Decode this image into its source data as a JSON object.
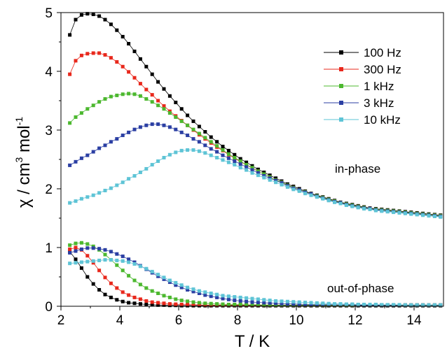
{
  "chart_data": {
    "type": "scatter",
    "xlabel": "T / K",
    "ylabel_parts": [
      "χ / cm",
      "3",
      " mol",
      "-1"
    ],
    "xlim": [
      2,
      15
    ],
    "ylim": [
      0,
      5
    ],
    "xticks": [
      "2",
      "4",
      "6",
      "8",
      "10",
      "12",
      "14"
    ],
    "yticks": [
      "0",
      "1",
      "2",
      "3",
      "4",
      "5"
    ],
    "x": [
      2.3,
      2.5,
      2.7,
      2.9,
      3.1,
      3.3,
      3.5,
      3.7,
      3.9,
      4.1,
      4.3,
      4.5,
      4.7,
      4.9,
      5.1,
      5.3,
      5.5,
      5.7,
      5.9,
      6.1,
      6.3,
      6.5,
      6.7,
      6.9,
      7.1,
      7.3,
      7.5,
      7.7,
      7.9,
      8.1,
      8.3,
      8.5,
      8.7,
      8.9,
      9.1,
      9.3,
      9.5,
      9.7,
      9.9,
      10.1,
      10.3,
      10.5,
      10.7,
      10.9,
      11.1,
      11.3,
      11.5,
      11.7,
      11.9,
      12.1,
      12.3,
      12.5,
      12.7,
      12.9,
      13.1,
      13.3,
      13.5,
      13.7,
      13.9,
      14.1,
      14.3,
      14.5,
      14.7,
      14.9
    ],
    "legend": {
      "position": "top-right",
      "entries": [
        "100 Hz",
        "300 Hz",
        "1 kHz",
        "3 kHz",
        "10 kHz"
      ]
    },
    "annotations": [
      "in-phase",
      "out-of-phase"
    ],
    "series": [
      {
        "name": "100 Hz",
        "color": "#000000",
        "in_phase": [
          4.62,
          4.88,
          4.96,
          4.98,
          4.97,
          4.94,
          4.88,
          4.8,
          4.7,
          4.59,
          4.47,
          4.34,
          4.21,
          4.08,
          3.95,
          3.82,
          3.7,
          3.58,
          3.47,
          3.36,
          3.25,
          3.15,
          3.06,
          2.97,
          2.88,
          2.8,
          2.72,
          2.65,
          2.58,
          2.51,
          2.45,
          2.39,
          2.33,
          2.28,
          2.23,
          2.18,
          2.13,
          2.08,
          2.04,
          2.0,
          1.96,
          1.92,
          1.89,
          1.86,
          1.83,
          1.8,
          1.77,
          1.75,
          1.73,
          1.71,
          1.69,
          1.67,
          1.66,
          1.65,
          1.64,
          1.63,
          1.62,
          1.61,
          1.6,
          1.59,
          1.58,
          1.57,
          1.56,
          1.55
        ],
        "out_of_phase": [
          0.93,
          0.8,
          0.65,
          0.5,
          0.38,
          0.28,
          0.2,
          0.15,
          0.11,
          0.08,
          0.06,
          0.05,
          0.04,
          0.03,
          0.025,
          0.02,
          0.02,
          0.015,
          0.015,
          0.01,
          0.01,
          0.01,
          0.01,
          0.01,
          0.01,
          0.01,
          0.01,
          0.01,
          0.01,
          0.01,
          0.01,
          0.01,
          0.01,
          0.01,
          0.01,
          0.01,
          0.01,
          0.01,
          0.01,
          0.01,
          0.01,
          0.01,
          0.01,
          0.01,
          0.01,
          0.01,
          0.01,
          0.01,
          0.01,
          0.01,
          0.01,
          0.01,
          0.01,
          0.01,
          0.01,
          0.01,
          0.01,
          0.01,
          0.01,
          0.01,
          0.01,
          0.01,
          0.01,
          0.01
        ]
      },
      {
        "name": "300 Hz",
        "color": "#e8281c",
        "in_phase": [
          3.95,
          4.18,
          4.27,
          4.3,
          4.31,
          4.31,
          4.28,
          4.23,
          4.16,
          4.08,
          3.99,
          3.89,
          3.79,
          3.69,
          3.6,
          3.5,
          3.41,
          3.32,
          3.24,
          3.16,
          3.08,
          3.0,
          2.92,
          2.85,
          2.78,
          2.71,
          2.65,
          2.58,
          2.52,
          2.46,
          2.41,
          2.35,
          2.3,
          2.25,
          2.2,
          2.15,
          2.11,
          2.06,
          2.02,
          1.98,
          1.95,
          1.91,
          1.88,
          1.85,
          1.82,
          1.79,
          1.76,
          1.74,
          1.72,
          1.7,
          1.68,
          1.66,
          1.65,
          1.64,
          1.63,
          1.62,
          1.61,
          1.6,
          1.59,
          1.58,
          1.57,
          1.56,
          1.55,
          1.54
        ],
        "out_of_phase": [
          0.97,
          1.0,
          0.96,
          0.86,
          0.74,
          0.61,
          0.49,
          0.39,
          0.31,
          0.24,
          0.19,
          0.15,
          0.12,
          0.09,
          0.07,
          0.06,
          0.05,
          0.04,
          0.035,
          0.03,
          0.03,
          0.025,
          0.025,
          0.02,
          0.02,
          0.02,
          0.02,
          0.02,
          0.02,
          0.02,
          0.02,
          0.02,
          0.02,
          0.02,
          0.02,
          0.02,
          0.02,
          0.02,
          0.02,
          0.02,
          0.02,
          0.02,
          0.02,
          0.02,
          0.02,
          0.02,
          0.02,
          0.02,
          0.02,
          0.02,
          0.02,
          0.02,
          0.02,
          0.02,
          0.02,
          0.02,
          0.02,
          0.02,
          0.02,
          0.02,
          0.02,
          0.02,
          0.02,
          0.02
        ]
      },
      {
        "name": "1 kHz",
        "color": "#4cb82f",
        "in_phase": [
          3.12,
          3.22,
          3.29,
          3.36,
          3.42,
          3.48,
          3.53,
          3.57,
          3.59,
          3.61,
          3.62,
          3.61,
          3.58,
          3.53,
          3.48,
          3.42,
          3.36,
          3.29,
          3.22,
          3.15,
          3.08,
          3.01,
          2.94,
          2.87,
          2.8,
          2.73,
          2.66,
          2.59,
          2.53,
          2.47,
          2.41,
          2.36,
          2.3,
          2.25,
          2.2,
          2.15,
          2.11,
          2.06,
          2.02,
          1.98,
          1.95,
          1.91,
          1.88,
          1.85,
          1.82,
          1.79,
          1.76,
          1.74,
          1.72,
          1.7,
          1.68,
          1.66,
          1.65,
          1.64,
          1.63,
          1.62,
          1.61,
          1.6,
          1.59,
          1.58,
          1.57,
          1.56,
          1.55,
          1.54
        ],
        "out_of_phase": [
          1.04,
          1.07,
          1.08,
          1.06,
          1.02,
          0.96,
          0.88,
          0.79,
          0.7,
          0.61,
          0.52,
          0.44,
          0.37,
          0.31,
          0.26,
          0.22,
          0.18,
          0.15,
          0.12,
          0.1,
          0.085,
          0.07,
          0.06,
          0.05,
          0.045,
          0.04,
          0.035,
          0.03,
          0.03,
          0.03,
          0.025,
          0.025,
          0.025,
          0.02,
          0.02,
          0.02,
          0.02,
          0.02,
          0.02,
          0.02,
          0.02,
          0.02,
          0.02,
          0.02,
          0.02,
          0.02,
          0.02,
          0.02,
          0.02,
          0.02,
          0.02,
          0.02,
          0.02,
          0.02,
          0.02,
          0.02,
          0.02,
          0.02,
          0.02,
          0.02,
          0.02,
          0.02,
          0.02,
          0.02
        ]
      },
      {
        "name": "3 kHz",
        "color": "#2b3fa3",
        "in_phase": [
          2.4,
          2.46,
          2.52,
          2.57,
          2.63,
          2.69,
          2.74,
          2.8,
          2.85,
          2.91,
          2.96,
          3.01,
          3.05,
          3.08,
          3.1,
          3.1,
          3.08,
          3.05,
          3.01,
          2.96,
          2.91,
          2.85,
          2.8,
          2.74,
          2.68,
          2.63,
          2.57,
          2.52,
          2.47,
          2.42,
          2.37,
          2.32,
          2.27,
          2.22,
          2.18,
          2.14,
          2.1,
          2.05,
          2.01,
          1.98,
          1.94,
          1.91,
          1.87,
          1.84,
          1.81,
          1.78,
          1.76,
          1.73,
          1.71,
          1.69,
          1.67,
          1.66,
          1.64,
          1.63,
          1.62,
          1.61,
          1.6,
          1.59,
          1.58,
          1.57,
          1.56,
          1.55,
          1.54,
          1.53
        ],
        "out_of_phase": [
          0.91,
          0.94,
          0.97,
          0.99,
          0.99,
          0.98,
          0.96,
          0.93,
          0.89,
          0.85,
          0.8,
          0.75,
          0.69,
          0.63,
          0.57,
          0.51,
          0.46,
          0.41,
          0.36,
          0.32,
          0.28,
          0.25,
          0.22,
          0.19,
          0.17,
          0.15,
          0.13,
          0.115,
          0.1,
          0.09,
          0.08,
          0.07,
          0.065,
          0.06,
          0.055,
          0.05,
          0.045,
          0.04,
          0.04,
          0.035,
          0.035,
          0.03,
          0.03,
          0.03,
          0.03,
          0.025,
          0.025,
          0.025,
          0.025,
          0.02,
          0.02,
          0.02,
          0.02,
          0.02,
          0.02,
          0.02,
          0.02,
          0.02,
          0.02,
          0.02,
          0.02,
          0.02,
          0.02,
          0.02
        ]
      },
      {
        "name": "10 kHz",
        "color": "#5ec4d6",
        "in_phase": [
          1.76,
          1.79,
          1.83,
          1.86,
          1.89,
          1.93,
          1.97,
          2.01,
          2.06,
          2.11,
          2.17,
          2.22,
          2.28,
          2.34,
          2.41,
          2.47,
          2.53,
          2.58,
          2.62,
          2.65,
          2.66,
          2.66,
          2.64,
          2.61,
          2.57,
          2.53,
          2.49,
          2.45,
          2.41,
          2.36,
          2.32,
          2.27,
          2.23,
          2.19,
          2.15,
          2.11,
          2.07,
          2.03,
          1.99,
          1.96,
          1.92,
          1.89,
          1.86,
          1.83,
          1.8,
          1.77,
          1.75,
          1.72,
          1.7,
          1.68,
          1.66,
          1.65,
          1.63,
          1.62,
          1.61,
          1.6,
          1.59,
          1.58,
          1.57,
          1.56,
          1.55,
          1.54,
          1.53,
          1.52
        ],
        "out_of_phase": [
          0.73,
          0.74,
          0.75,
          0.76,
          0.77,
          0.78,
          0.79,
          0.79,
          0.78,
          0.77,
          0.75,
          0.72,
          0.68,
          0.64,
          0.59,
          0.54,
          0.49,
          0.44,
          0.4,
          0.36,
          0.32,
          0.29,
          0.26,
          0.24,
          0.22,
          0.2,
          0.18,
          0.17,
          0.16,
          0.15,
          0.14,
          0.13,
          0.12,
          0.11,
          0.1,
          0.09,
          0.085,
          0.08,
          0.075,
          0.07,
          0.065,
          0.06,
          0.055,
          0.05,
          0.045,
          0.04,
          0.04,
          0.035,
          0.035,
          0.03,
          0.03,
          0.03,
          0.03,
          0.025,
          0.025,
          0.025,
          0.025,
          0.02,
          0.02,
          0.02,
          0.02,
          0.02,
          0.02,
          0.02
        ]
      }
    ]
  }
}
